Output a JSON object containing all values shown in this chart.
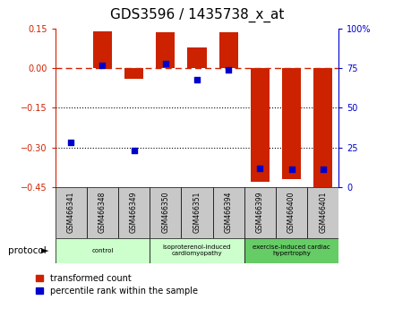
{
  "title": "GDS3596 / 1435738_x_at",
  "samples": [
    "GSM466341",
    "GSM466348",
    "GSM466349",
    "GSM466350",
    "GSM466351",
    "GSM466394",
    "GSM466399",
    "GSM466400",
    "GSM466401"
  ],
  "red_bars": [
    0.0,
    0.14,
    -0.04,
    0.135,
    0.08,
    0.135,
    -0.43,
    -0.42,
    -0.46
  ],
  "blue_pct": [
    28,
    77,
    23,
    78,
    68,
    74,
    12,
    11,
    11
  ],
  "ylim_left": [
    -0.45,
    0.15
  ],
  "yticks_left": [
    -0.45,
    -0.3,
    -0.15,
    0.0,
    0.15
  ],
  "ylim_right": [
    0,
    100
  ],
  "yticks_right": [
    0,
    25,
    50,
    75,
    100
  ],
  "red_color": "#cc2200",
  "blue_color": "#0000cc",
  "bar_width": 0.6,
  "title_fontsize": 11,
  "group_spans": [
    {
      "start": 0,
      "end": 2,
      "color": "#ccffcc",
      "label": "control"
    },
    {
      "start": 3,
      "end": 5,
      "color": "#ccffcc",
      "label": "isoproterenol-induced\ncardiomyopathy"
    },
    {
      "start": 6,
      "end": 8,
      "color": "#66cc66",
      "label": "exercise-induced cardiac\nhypertrophy"
    }
  ],
  "sample_box_color": "#c8c8c8",
  "legend_labels": [
    "transformed count",
    "percentile rank within the sample"
  ]
}
